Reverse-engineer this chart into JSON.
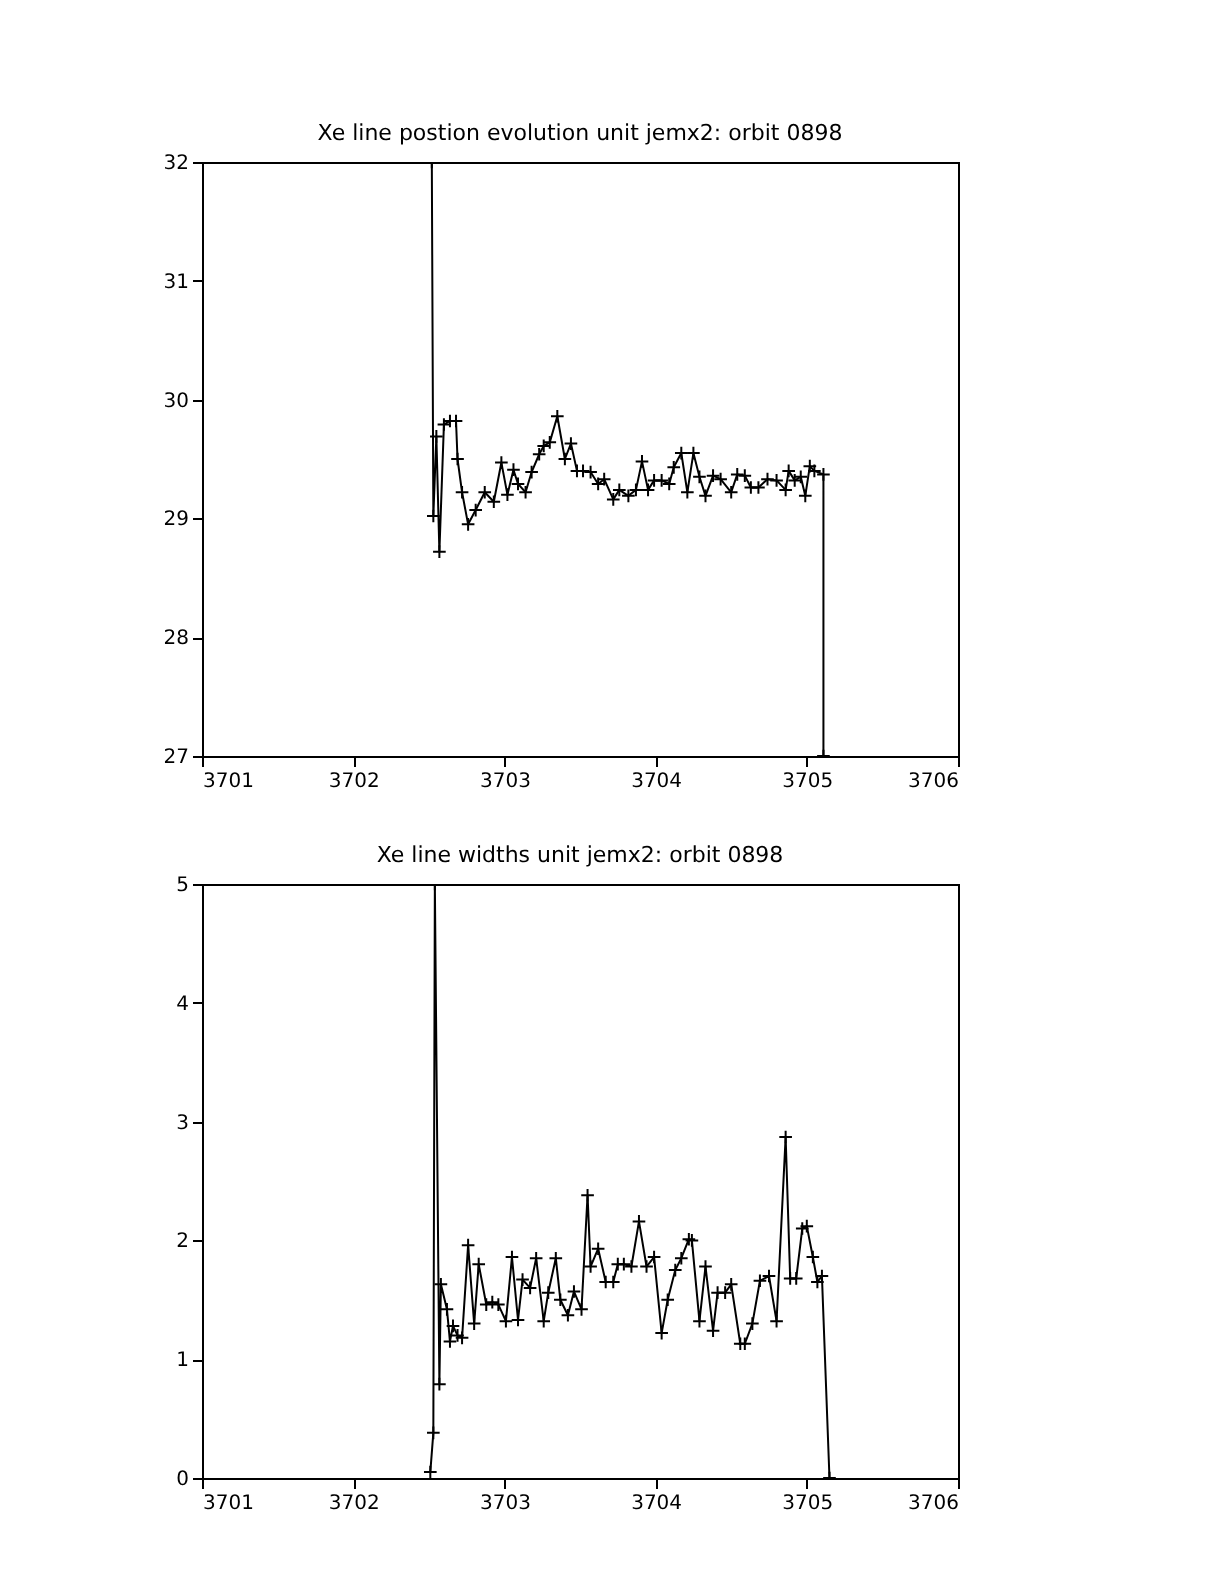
{
  "chart_data": [
    {
      "type": "line",
      "title": "Xe line postion evolution unit jemx2: orbit 0898",
      "marker": "cross",
      "line_style": "solid",
      "grid": false,
      "xlim": [
        3701,
        3706
      ],
      "xticks": [
        3701,
        3702,
        3703,
        3704,
        3705,
        3706
      ],
      "ylim": [
        27,
        32
      ],
      "yticks": [
        27,
        28,
        29,
        30,
        31,
        32
      ],
      "series": [
        {
          "color": "#000000",
          "x": [
            3702.52,
            3702.53,
            3702.55,
            3702.57,
            3702.6,
            3702.64,
            3702.68,
            3702.69,
            3702.72,
            3702.76,
            3702.81,
            3702.87,
            3702.93,
            3702.98,
            3703.02,
            3703.06,
            3703.09,
            3703.14,
            3703.18,
            3703.23,
            3703.26,
            3703.3,
            3703.35,
            3703.4,
            3703.44,
            3703.48,
            3703.52,
            3703.57,
            3703.62,
            3703.66,
            3703.72,
            3703.76,
            3703.82,
            3703.87,
            3703.91,
            3703.95,
            3703.99,
            3704.04,
            3704.09,
            3704.12,
            3704.17,
            3704.21,
            3704.25,
            3704.29,
            3704.33,
            3704.38,
            3704.43,
            3704.5,
            3704.54,
            3704.59,
            3704.63,
            3704.68,
            3704.74,
            3704.8,
            3704.86,
            3704.88,
            3704.92,
            3704.96,
            3704.99,
            3705.02,
            3705.05,
            3705.11,
            3705.11
          ],
          "values": [
            32,
            29.02,
            29.69,
            28.72,
            29.79,
            29.82,
            29.82,
            29.5,
            29.22,
            28.95,
            29.07,
            29.22,
            29.14,
            29.47,
            29.2,
            29.41,
            29.29,
            29.22,
            29.39,
            29.54,
            29.61,
            29.64,
            29.86,
            29.5,
            29.63,
            29.4,
            29.4,
            29.39,
            29.29,
            29.33,
            29.16,
            29.24,
            29.19,
            29.24,
            29.48,
            29.24,
            29.32,
            29.32,
            29.29,
            29.43,
            29.55,
            29.22,
            29.55,
            29.35,
            29.19,
            29.36,
            29.33,
            29.22,
            29.37,
            29.36,
            29.26,
            29.26,
            29.33,
            29.32,
            29.24,
            29.4,
            29.32,
            29.35,
            29.19,
            29.44,
            29.4,
            29.37,
            27
          ]
        }
      ]
    },
    {
      "type": "line",
      "title": "Xe line widths unit jemx2: orbit 0898",
      "marker": "cross",
      "line_style": "solid",
      "grid": false,
      "xlim": [
        3701,
        3706
      ],
      "xticks": [
        3701,
        3702,
        3703,
        3704,
        3705,
        3706
      ],
      "ylim": [
        0,
        5
      ],
      "yticks": [
        0,
        1,
        2,
        3,
        4,
        5
      ],
      "series": [
        {
          "color": "#000000",
          "x": [
            3702.51,
            3702.53,
            3702.54,
            3702.57,
            3702.58,
            3702.62,
            3702.64,
            3702.66,
            3702.69,
            3702.72,
            3702.76,
            3702.8,
            3702.83,
            3702.88,
            3702.92,
            3702.96,
            3703.01,
            3703.05,
            3703.09,
            3703.12,
            3703.17,
            3703.21,
            3703.26,
            3703.29,
            3703.34,
            3703.37,
            3703.42,
            3703.46,
            3703.51,
            3703.55,
            3703.57,
            3703.62,
            3703.67,
            3703.72,
            3703.75,
            3703.79,
            3703.84,
            3703.89,
            3703.94,
            3703.99,
            3704.04,
            3704.08,
            3704.13,
            3704.17,
            3704.22,
            3704.24,
            3704.29,
            3704.33,
            3704.38,
            3704.41,
            3704.46,
            3704.5,
            3704.56,
            3704.59,
            3704.64,
            3704.69,
            3704.75,
            3704.8,
            3704.86,
            3704.89,
            3704.93,
            3704.97,
            3705.0,
            3705.04,
            3705.07,
            3705.1,
            3705.15
          ],
          "values": [
            0.05,
            0.38,
            5,
            0.79,
            1.63,
            1.42,
            1.15,
            1.28,
            1.2,
            1.18,
            1.96,
            1.3,
            1.8,
            1.46,
            1.48,
            1.46,
            1.32,
            1.86,
            1.33,
            1.67,
            1.6,
            1.85,
            1.32,
            1.56,
            1.85,
            1.5,
            1.37,
            1.57,
            1.42,
            2.38,
            1.78,
            1.93,
            1.65,
            1.65,
            1.8,
            1.8,
            1.78,
            2.16,
            1.78,
            1.86,
            1.22,
            1.5,
            1.75,
            1.85,
            2.01,
            2.0,
            1.32,
            1.78,
            1.24,
            1.56,
            1.56,
            1.63,
            1.13,
            1.13,
            1.3,
            1.66,
            1.7,
            1.32,
            2.87,
            1.68,
            1.68,
            2.1,
            2.12,
            1.86,
            1.65,
            1.7,
            0
          ]
        }
      ]
    }
  ]
}
